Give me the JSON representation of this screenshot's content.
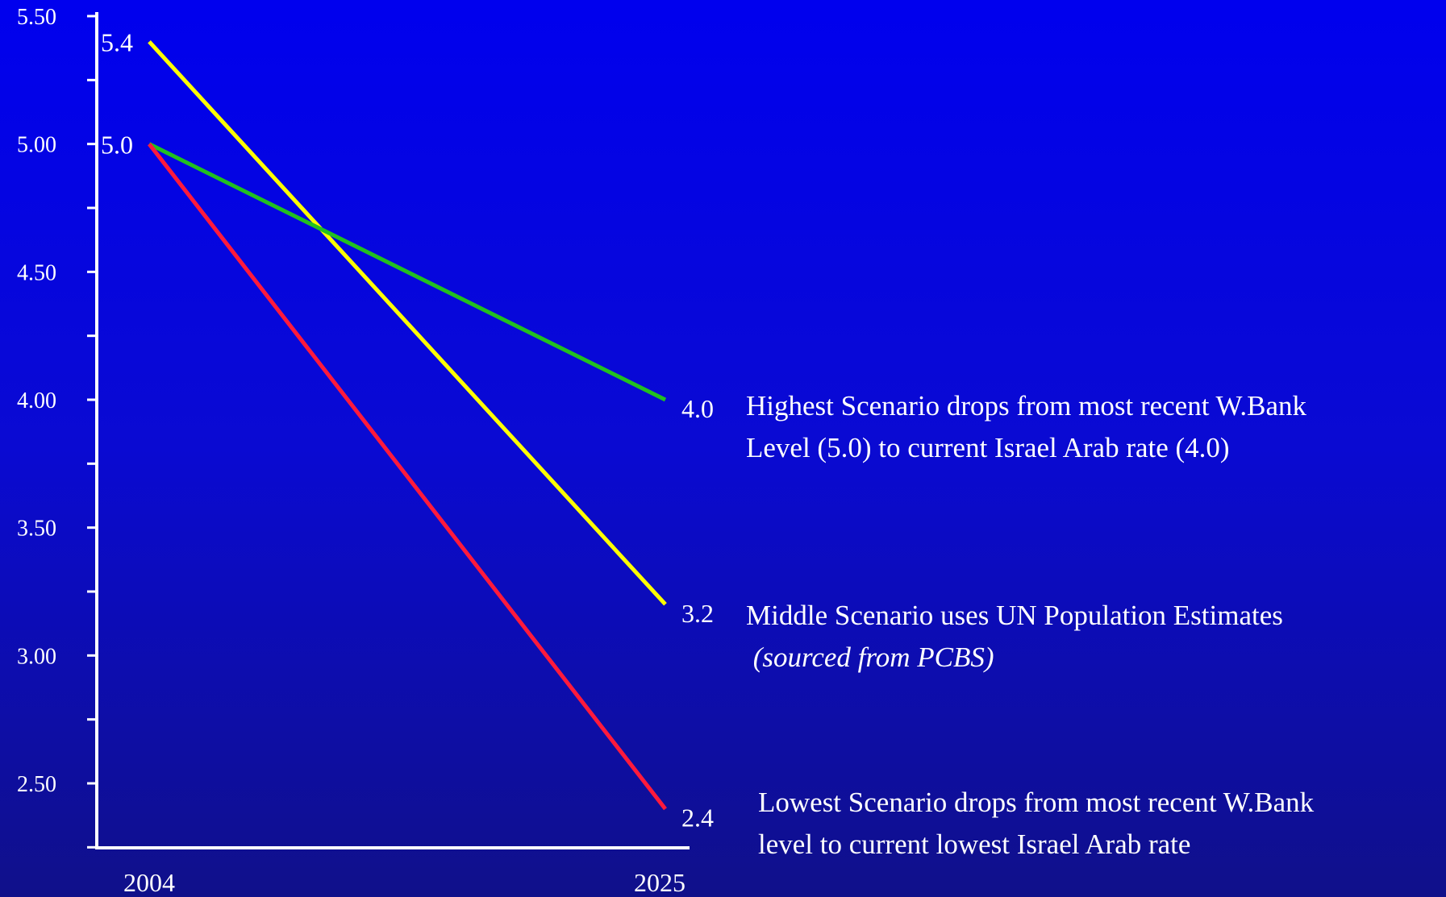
{
  "chart_data": {
    "type": "line",
    "x": [
      "2004",
      "2025"
    ],
    "ylim": [
      2.25,
      5.5
    ],
    "yticks": [
      "5.50",
      "5.00",
      "4.50",
      "4.00",
      "3.50",
      "3.00",
      "2.50"
    ],
    "ytick_values": [
      5.5,
      5.0,
      4.5,
      4.0,
      3.5,
      3.0,
      2.5
    ],
    "grid": false,
    "series": [
      {
        "color": "#ffff00",
        "values": [
          5.4,
          3.2
        ],
        "start_label": "5.4",
        "end_label": "3.2"
      },
      {
        "color": "#22c020",
        "values": [
          5.0,
          4.0
        ],
        "start_label": "5.0",
        "end_label": "4.0"
      },
      {
        "color": "#ff1a3c",
        "values": [
          5.0,
          2.4
        ],
        "start_label": "",
        "end_label": "2.4"
      }
    ]
  },
  "annotations": {
    "highest": {
      "line1": "Highest Scenario drops from most recent W.Bank",
      "line2": "Level (5.0)  to current Israel Arab rate (4.0)"
    },
    "middle": {
      "line1": "Middle Scenario uses UN Population Estimates",
      "line2": " (sourced from PCBS)"
    },
    "lowest": {
      "line1": "Lowest Scenario drops from most recent W.Bank",
      "line2": "level to current lowest Israel Arab rate"
    }
  }
}
